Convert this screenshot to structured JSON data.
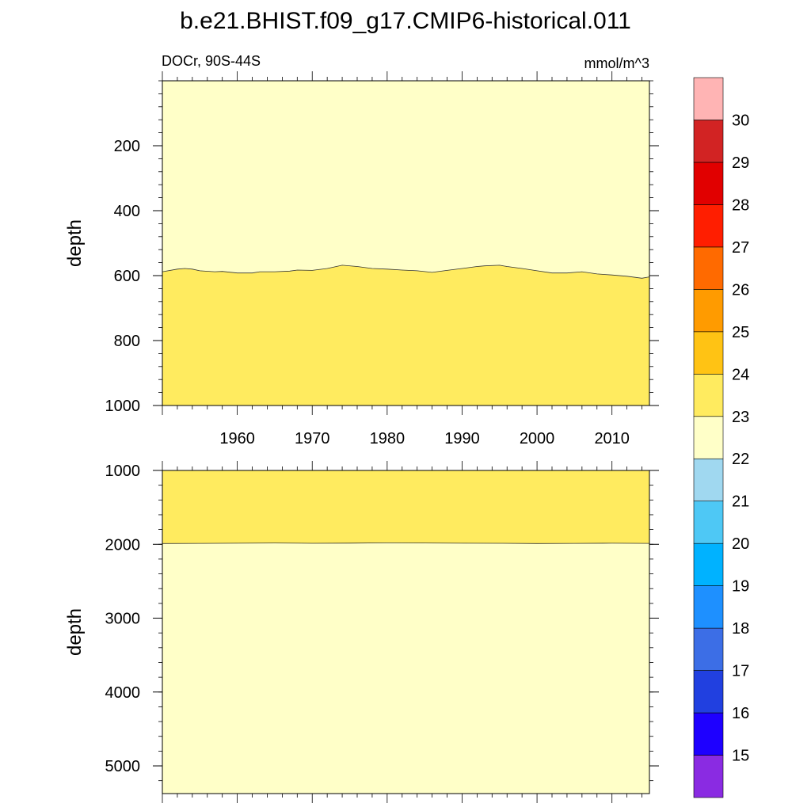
{
  "title": "b.e21.BHIST.f09_g17.CMIP6-historical.011",
  "subtitle_left": "DOCr, 90S-44S",
  "subtitle_right": "mmol/m^3",
  "chart_data": [
    {
      "type": "area",
      "panel": "upper",
      "ylabel": "depth",
      "xlim": [
        1950,
        2015
      ],
      "ylim": [
        0,
        1000
      ],
      "y_inverted": true,
      "xticks": [
        "1960",
        "1970",
        "1980",
        "1990",
        "2000",
        "2010"
      ],
      "yticks": [
        "200",
        "400",
        "600",
        "800",
        "1000"
      ],
      "fill_above": "#ffffc8",
      "fill_below": "#ffeb5f",
      "contour_name": "23",
      "contour_x": [
        1950,
        1952,
        1953,
        1954,
        1955,
        1957,
        1958,
        1960,
        1962,
        1963,
        1965,
        1967,
        1968,
        1970,
        1972,
        1974,
        1976,
        1978,
        1980,
        1982,
        1984,
        1986,
        1988,
        1990,
        1992,
        1993,
        1995,
        1996,
        1998,
        2000,
        2002,
        2004,
        2006,
        2008,
        2010,
        2012,
        2014,
        2015
      ],
      "contour_y": [
        588,
        580,
        578,
        580,
        585,
        588,
        587,
        592,
        592,
        588,
        588,
        586,
        583,
        584,
        578,
        568,
        572,
        578,
        580,
        583,
        585,
        590,
        584,
        578,
        572,
        570,
        568,
        572,
        578,
        585,
        592,
        592,
        588,
        595,
        598,
        602,
        608,
        604
      ]
    },
    {
      "type": "area",
      "panel": "lower",
      "ylabel": "depth",
      "xlim": [
        1950,
        2015
      ],
      "ylim": [
        1000,
        5375
      ],
      "y_inverted": true,
      "yticks": [
        "1000",
        "2000",
        "3000",
        "4000",
        "5000"
      ],
      "fill_above": "#ffeb5f",
      "fill_below": "#ffffc8",
      "contour_name": "22",
      "contour_x": [
        1950,
        1955,
        1960,
        1965,
        1970,
        1975,
        1980,
        1985,
        1990,
        1995,
        2000,
        2005,
        2010,
        2015
      ],
      "contour_y": [
        1990,
        1988,
        1985,
        1982,
        1986,
        1984,
        1980,
        1982,
        1985,
        1987,
        1990,
        1988,
        1985,
        1988
      ]
    }
  ],
  "colorbar": {
    "labels": [
      "15",
      "16",
      "17",
      "18",
      "19",
      "20",
      "21",
      "22",
      "23",
      "24",
      "25",
      "26",
      "27",
      "28",
      "29",
      "30"
    ],
    "colors": [
      "#8a2be2",
      "#1e00ff",
      "#2140e0",
      "#3c6ee6",
      "#1e90ff",
      "#00b2ff",
      "#4ec8f5",
      "#a0d8f0",
      "#ffffc8",
      "#ffeb5f",
      "#ffc314",
      "#ff9b00",
      "#ff6a00",
      "#ff1e00",
      "#e10000",
      "#d22323",
      "#ffb4b4"
    ]
  }
}
